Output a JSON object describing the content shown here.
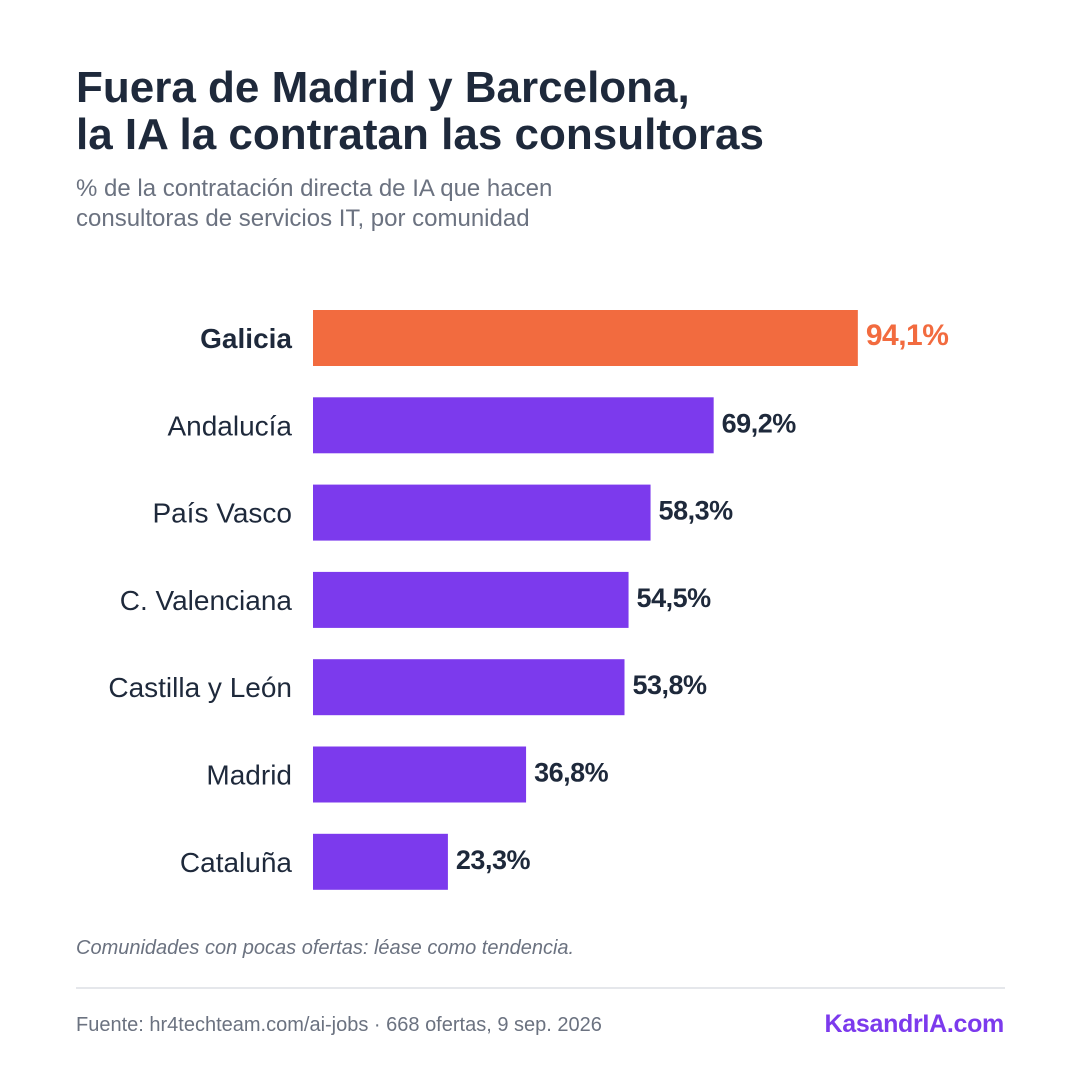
{
  "header": {
    "title_line1": "Fuera de Madrid y Barcelona,",
    "title_line2": "la IA la contratan las consultoras",
    "subtitle_line1": "% de la contratación directa de IA que hacen",
    "subtitle_line2": "consultoras de servicios IT, por comunidad"
  },
  "chart_data": {
    "type": "bar",
    "orientation": "horizontal",
    "categories": [
      "Galicia",
      "Andalucía",
      "País Vasco",
      "C. Valenciana",
      "Castilla y León",
      "Madrid",
      "Cataluña"
    ],
    "values": [
      94.1,
      69.2,
      58.3,
      54.5,
      53.8,
      36.8,
      23.3
    ],
    "value_labels": [
      "94,1%",
      "69,2%",
      "58,3%",
      "54,5%",
      "53,8%",
      "36,8%",
      "23,3%"
    ],
    "highlight_index": 0,
    "xlim": [
      0,
      100
    ],
    "grid": false,
    "colors": {
      "highlight": "#f26b3f",
      "default": "#7c3aed",
      "label": "#1e293b"
    }
  },
  "footer": {
    "note": "Comunidades con pocas ofertas: léase como tendencia.",
    "source": "Fuente: hr4techteam.com/ai-jobs · 668 ofertas, 9 sep. 2026",
    "brand": "KasandrIA.com"
  }
}
